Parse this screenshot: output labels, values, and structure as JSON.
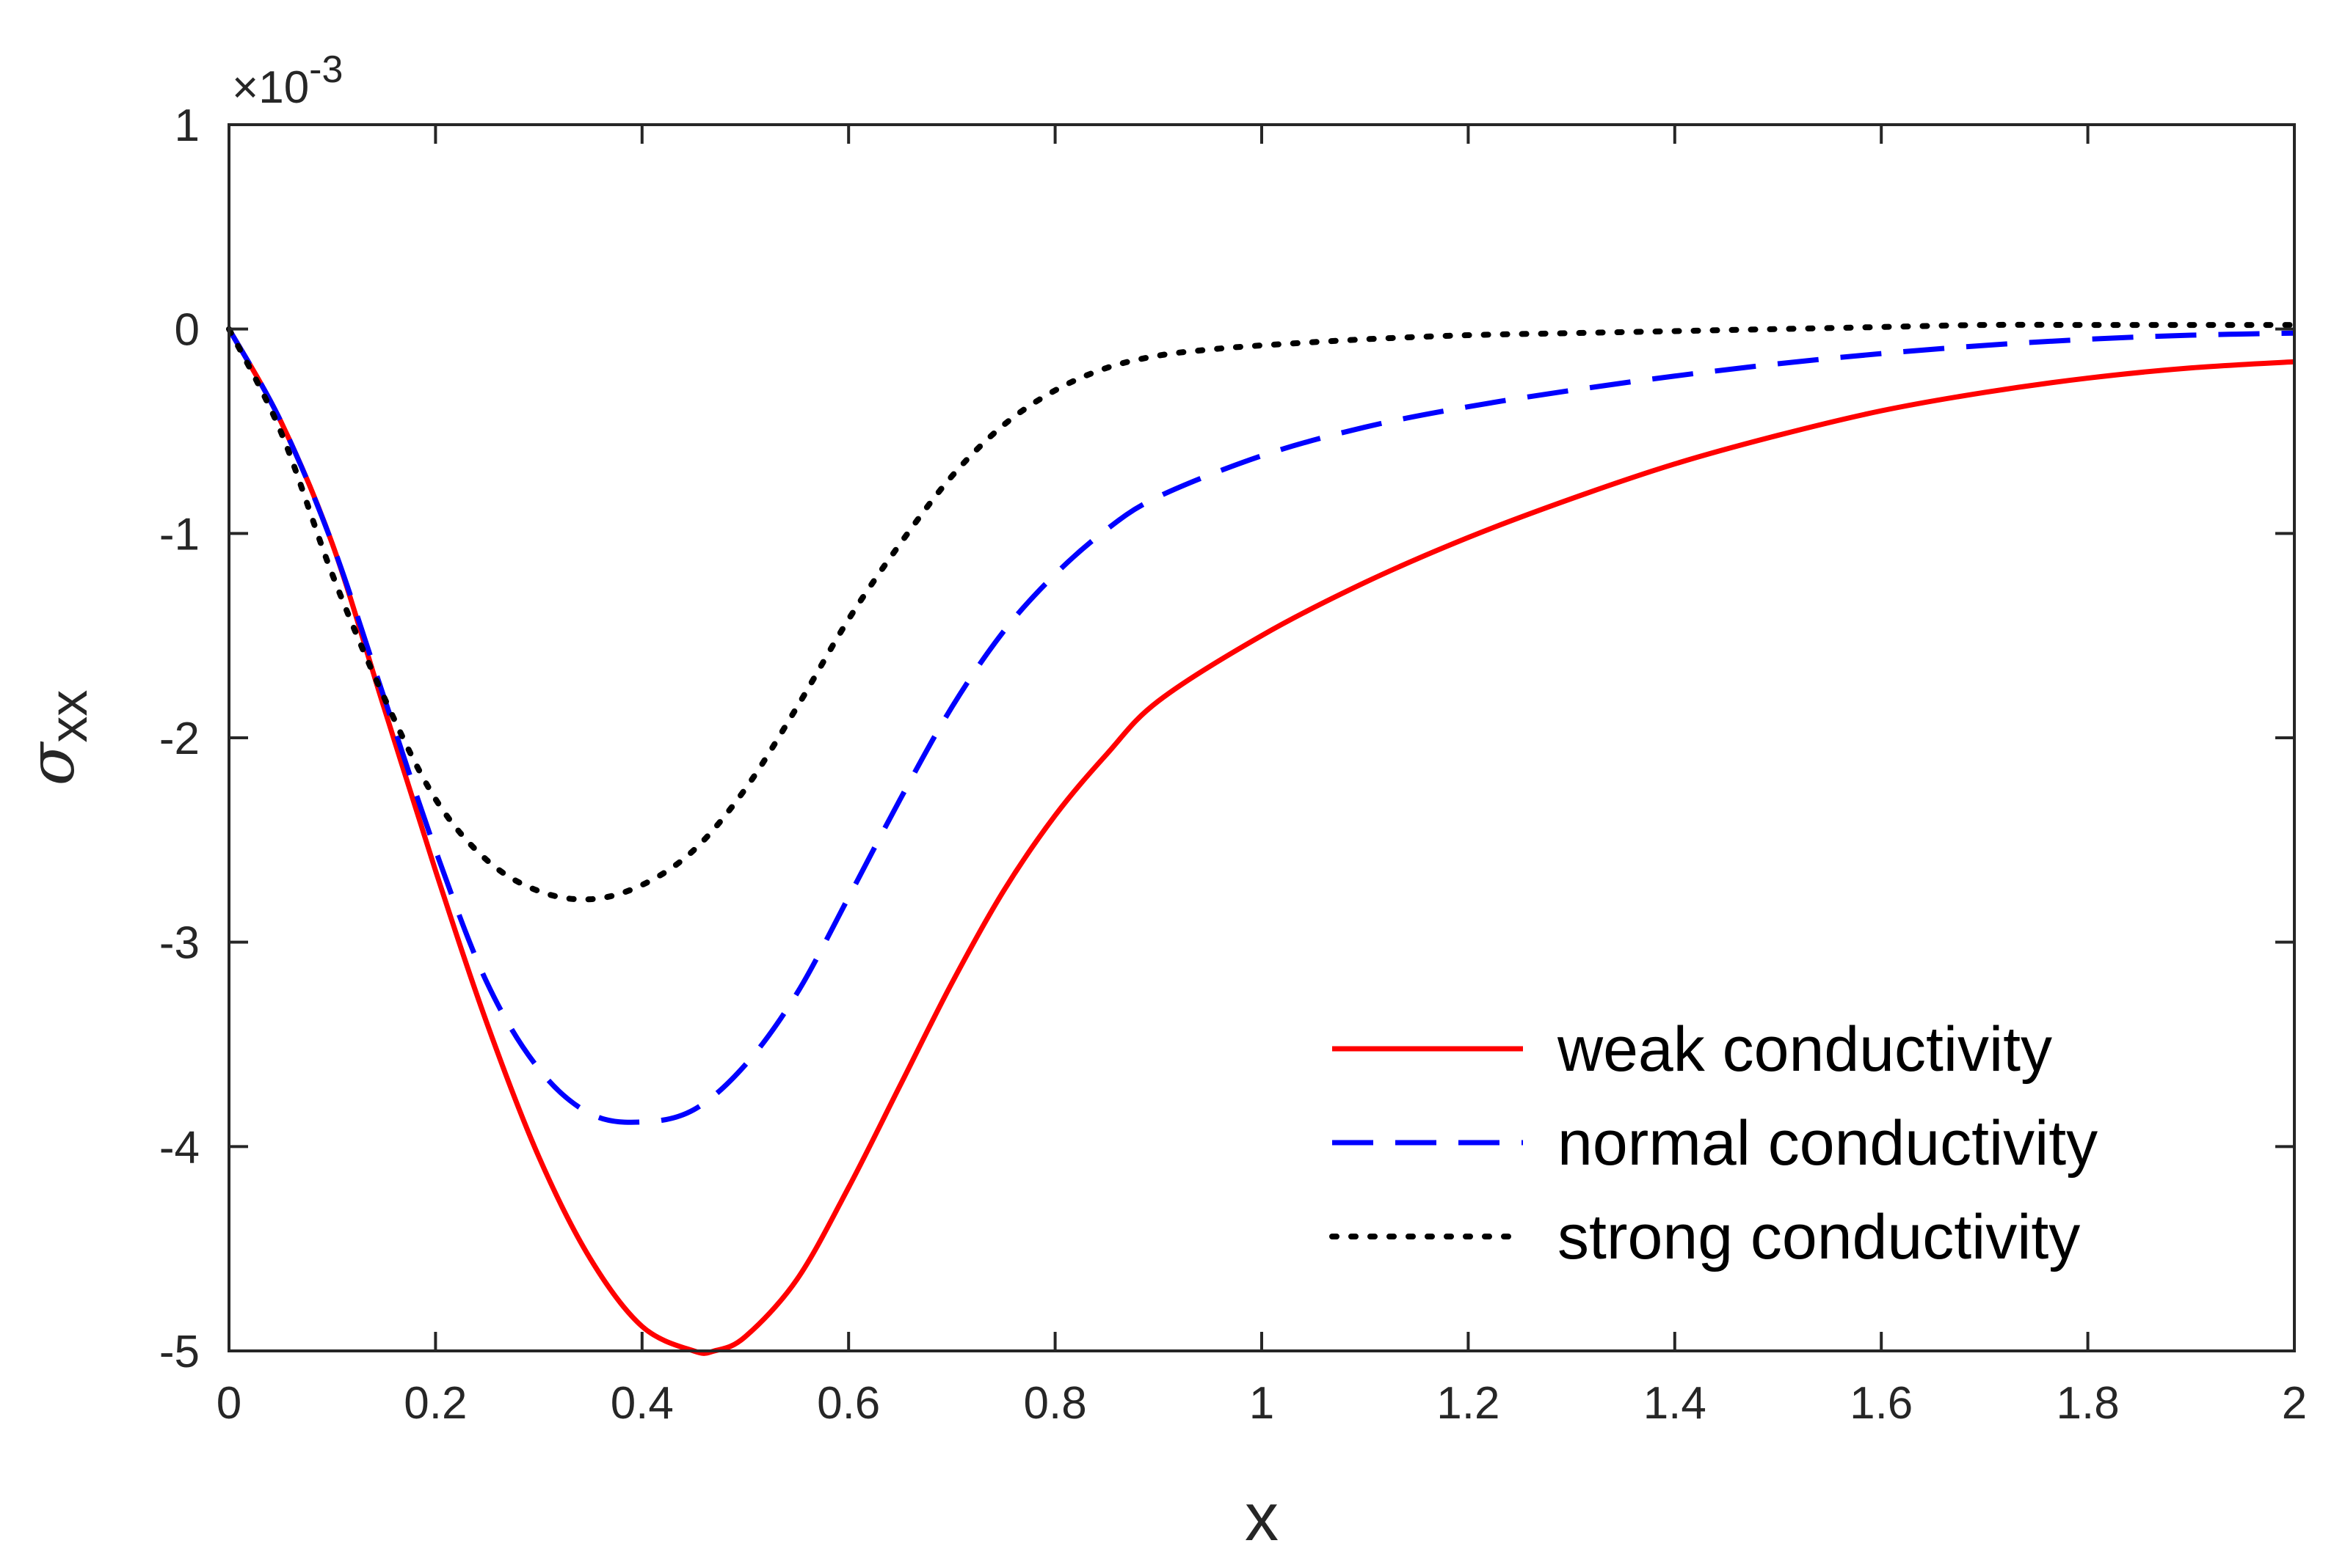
{
  "chart_data": {
    "type": "line",
    "title": "",
    "xlabel": "x",
    "ylabel_main": "σ",
    "ylabel_sub": "xx",
    "exponent_prefix": "×10",
    "exponent_power": "-3",
    "xlim": [
      0,
      2
    ],
    "ylim": [
      -5,
      1
    ],
    "xticks": [
      0,
      0.2,
      0.4,
      0.6,
      0.8,
      1,
      1.2,
      1.4,
      1.6,
      1.8,
      2
    ],
    "xtick_labels": [
      "0",
      "0.2",
      "0.4",
      "0.6",
      "0.8",
      "1",
      "1.2",
      "1.4",
      "1.6",
      "1.8",
      "2"
    ],
    "yticks": [
      -5,
      -4,
      -3,
      -2,
      -1,
      0,
      1
    ],
    "ytick_labels": [
      "-5",
      "-4",
      "-3",
      "-2",
      "-1",
      "0",
      "1"
    ],
    "grid": false,
    "legend_position": "bottom-right",
    "series": [
      {
        "name": "weak conductivity",
        "color": "#ff0000",
        "style": "solid",
        "x": [
          0,
          0.05,
          0.1,
          0.15,
          0.2,
          0.25,
          0.3,
          0.35,
          0.4,
          0.45,
          0.47,
          0.5,
          0.55,
          0.6,
          0.65,
          0.7,
          0.75,
          0.8,
          0.85,
          0.9,
          1.0,
          1.1,
          1.2,
          1.3,
          1.4,
          1.5,
          1.6,
          1.7,
          1.8,
          1.9,
          2.0
        ],
        "y": [
          0,
          -0.45,
          -1.05,
          -1.85,
          -2.65,
          -3.4,
          -4.05,
          -4.55,
          -4.88,
          -5.0,
          -5.0,
          -4.93,
          -4.65,
          -4.2,
          -3.7,
          -3.2,
          -2.75,
          -2.38,
          -2.08,
          -1.82,
          -1.5,
          -1.24,
          -1.02,
          -0.83,
          -0.66,
          -0.52,
          -0.4,
          -0.31,
          -0.24,
          -0.19,
          -0.16
        ]
      },
      {
        "name": "normal conductivity",
        "color": "#0000ff",
        "style": "dashed",
        "x": [
          0,
          0.05,
          0.1,
          0.15,
          0.2,
          0.25,
          0.3,
          0.35,
          0.4,
          0.45,
          0.5,
          0.55,
          0.6,
          0.65,
          0.7,
          0.75,
          0.8,
          0.85,
          0.9,
          1.0,
          1.1,
          1.2,
          1.3,
          1.4,
          1.5,
          1.6,
          1.7,
          1.8,
          1.9,
          2.0
        ],
        "y": [
          0,
          -0.45,
          -1.05,
          -1.8,
          -2.55,
          -3.2,
          -3.62,
          -3.84,
          -3.88,
          -3.82,
          -3.6,
          -3.25,
          -2.78,
          -2.3,
          -1.85,
          -1.48,
          -1.2,
          -0.98,
          -0.82,
          -0.62,
          -0.48,
          -0.38,
          -0.3,
          -0.23,
          -0.17,
          -0.12,
          -0.08,
          -0.05,
          -0.03,
          -0.02
        ]
      },
      {
        "name": "strong conductivity",
        "color": "#000000",
        "style": "dotted",
        "x": [
          0,
          0.05,
          0.1,
          0.15,
          0.2,
          0.25,
          0.3,
          0.35,
          0.4,
          0.45,
          0.5,
          0.55,
          0.6,
          0.65,
          0.7,
          0.75,
          0.8,
          0.85,
          0.9,
          0.95,
          1.0,
          1.1,
          1.2,
          1.3,
          1.4,
          1.5,
          1.6,
          1.7,
          1.8,
          1.9,
          2.0
        ],
        "y": [
          0,
          -0.5,
          -1.2,
          -1.8,
          -2.3,
          -2.6,
          -2.75,
          -2.79,
          -2.72,
          -2.55,
          -2.25,
          -1.85,
          -1.42,
          -1.05,
          -0.72,
          -0.47,
          -0.3,
          -0.19,
          -0.13,
          -0.1,
          -0.08,
          -0.05,
          -0.03,
          -0.02,
          -0.01,
          0.0,
          0.01,
          0.02,
          0.02,
          0.02,
          0.02
        ]
      }
    ]
  }
}
